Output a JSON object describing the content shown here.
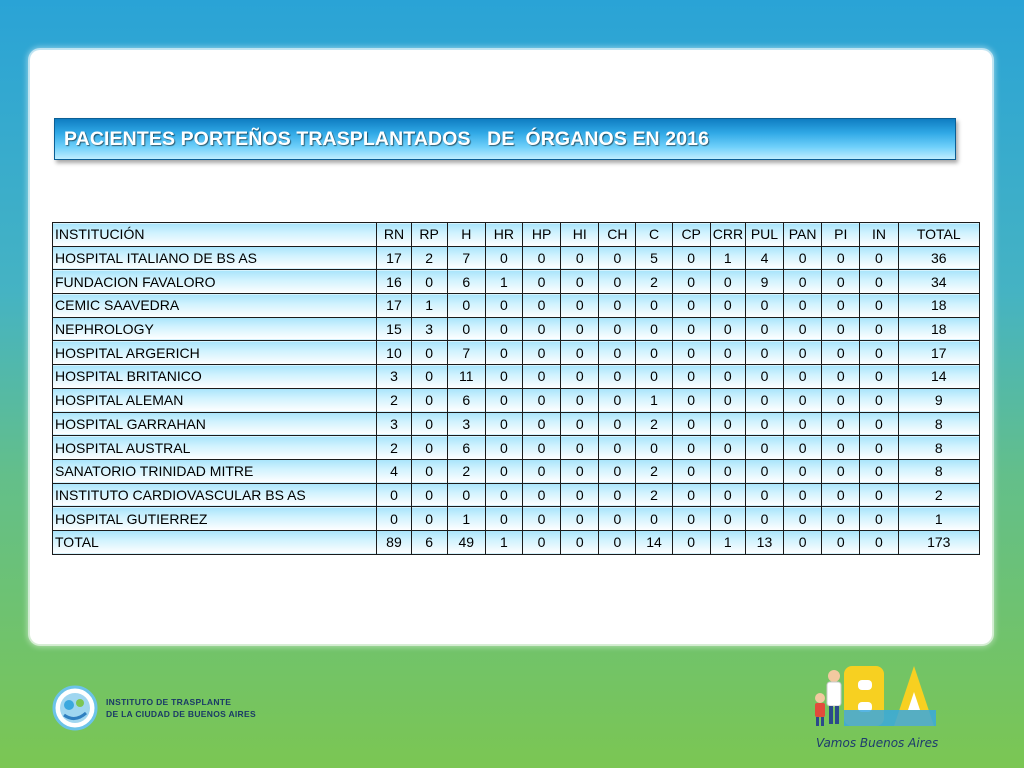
{
  "title": "PACIENTES PORTEÑOS TRASPLANTADOS   DE  ÓRGANOS EN 2016",
  "table": {
    "headers": [
      "INSTITUCIÓN",
      "RN",
      "RP",
      "H",
      "HR",
      "HP",
      "HI",
      "CH",
      "C",
      "CP",
      "CRR",
      "PUL",
      "PAN",
      "PI",
      "IN",
      "TOTAL"
    ],
    "rows": [
      [
        "HOSPITAL ITALIANO DE BS AS",
        "17",
        "2",
        "7",
        "0",
        "0",
        "0",
        "0",
        "5",
        "0",
        "1",
        "4",
        "0",
        "0",
        "0",
        "36"
      ],
      [
        "FUNDACION FAVALORO",
        "16",
        "0",
        "6",
        "1",
        "0",
        "0",
        "0",
        "2",
        "0",
        "0",
        "9",
        "0",
        "0",
        "0",
        "34"
      ],
      [
        "CEMIC  SAAVEDRA",
        "17",
        "1",
        "0",
        "0",
        "0",
        "0",
        "0",
        "0",
        "0",
        "0",
        "0",
        "0",
        "0",
        "0",
        "18"
      ],
      [
        "NEPHROLOGY",
        "15",
        "3",
        "0",
        "0",
        "0",
        "0",
        "0",
        "0",
        "0",
        "0",
        "0",
        "0",
        "0",
        "0",
        "18"
      ],
      [
        "HOSPITAL ARGERICH",
        "10",
        "0",
        "7",
        "0",
        "0",
        "0",
        "0",
        "0",
        "0",
        "0",
        "0",
        "0",
        "0",
        "0",
        "17"
      ],
      [
        "HOSPITAL BRITANICO",
        "3",
        "0",
        "11",
        "0",
        "0",
        "0",
        "0",
        "0",
        "0",
        "0",
        "0",
        "0",
        "0",
        "0",
        "14"
      ],
      [
        "HOSPITAL ALEMAN",
        "2",
        "0",
        "6",
        "0",
        "0",
        "0",
        "0",
        "1",
        "0",
        "0",
        "0",
        "0",
        "0",
        "0",
        "9"
      ],
      [
        "HOSPITAL  GARRAHAN",
        "3",
        "0",
        "3",
        "0",
        "0",
        "0",
        "0",
        "2",
        "0",
        "0",
        "0",
        "0",
        "0",
        "0",
        "8"
      ],
      [
        "HOSPITAL AUSTRAL",
        "2",
        "0",
        "6",
        "0",
        "0",
        "0",
        "0",
        "0",
        "0",
        "0",
        "0",
        "0",
        "0",
        "0",
        "8"
      ],
      [
        "SANATORIO TRINIDAD MITRE",
        "4",
        "0",
        "2",
        "0",
        "0",
        "0",
        "0",
        "2",
        "0",
        "0",
        "0",
        "0",
        "0",
        "0",
        "8"
      ],
      [
        "INSTITUTO CARDIOVASCULAR BS AS",
        "0",
        "0",
        "0",
        "0",
        "0",
        "0",
        "0",
        "2",
        "0",
        "0",
        "0",
        "0",
        "0",
        "0",
        "2"
      ],
      [
        "HOSPITAL GUTIERREZ",
        "0",
        "0",
        "1",
        "0",
        "0",
        "0",
        "0",
        "0",
        "0",
        "0",
        "0",
        "0",
        "0",
        "0",
        "1"
      ],
      [
        "TOTAL",
        "89",
        "6",
        "49",
        "1",
        "0",
        "0",
        "0",
        "14",
        "0",
        "1",
        "13",
        "0",
        "0",
        "0",
        "173"
      ]
    ]
  },
  "footer": {
    "left_logo": {
      "icon": "ministry-circle-logo",
      "line1": "INSTITUTO DE TRASPLANTE",
      "line2": "DE LA CIUDAD DE BUENOS AIRES"
    },
    "right_logo": {
      "icon": "ba-logo",
      "slogan": "Vamos Buenos Aires"
    }
  },
  "colors": {
    "title_bg": "#30a9e6",
    "cell_bg_top": "#a8e4fb",
    "background_top": "#2aa3d6",
    "background_bottom": "#7bc653"
  }
}
